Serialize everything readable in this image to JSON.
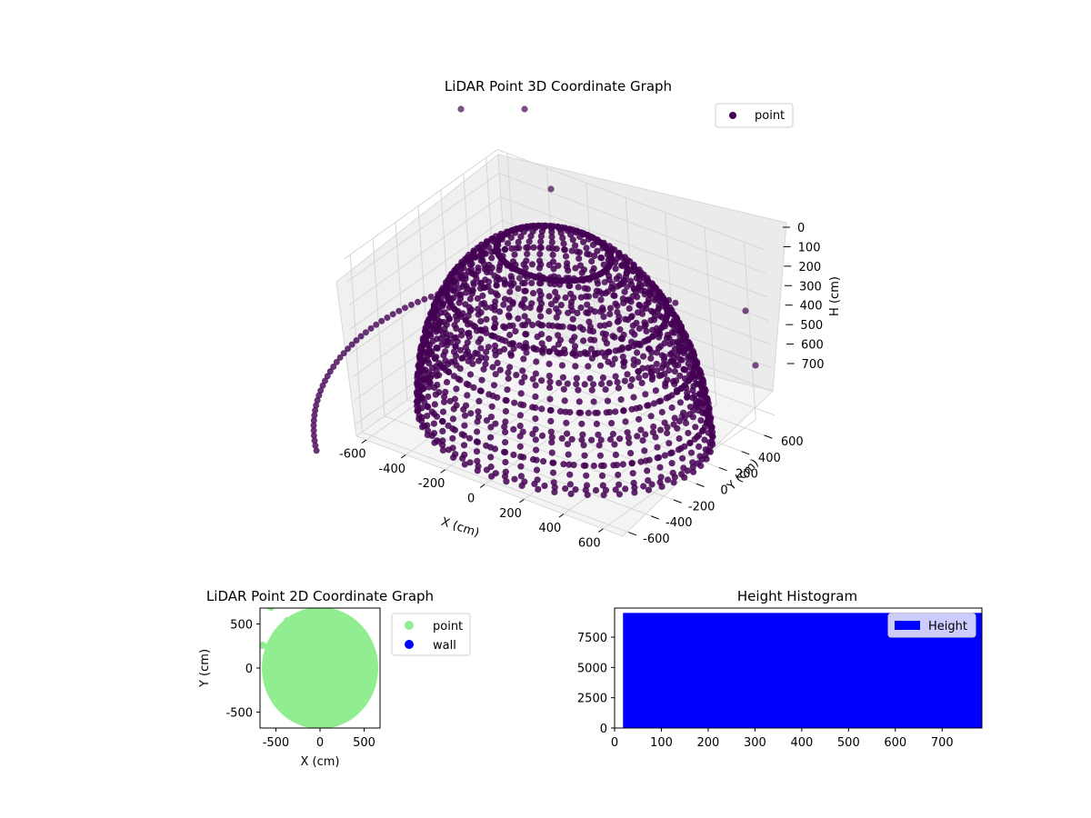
{
  "chart_data": [
    {
      "type": "scatter3d",
      "title": "LiDAR Point 3D Coordinate Graph",
      "xlabel": "X (cm)",
      "ylabel": "Y (cm)",
      "zlabel": "H (cm)",
      "xticks": [
        "-600",
        "-400",
        "-200",
        "0",
        "200",
        "400",
        "600"
      ],
      "yticks": [
        "-600",
        "-400",
        "-200",
        "0",
        "200",
        "400",
        "600"
      ],
      "zticks": [
        "0",
        "100",
        "200",
        "300",
        "400",
        "500",
        "600",
        "700"
      ],
      "xlim": [
        -650,
        700
      ],
      "ylim": [
        -650,
        700
      ],
      "zlim": [
        0,
        750
      ],
      "z_inverted": true,
      "grid": true,
      "legend": {
        "position": "top-right",
        "entries": [
          {
            "label": "point",
            "color": "#440154"
          }
        ]
      },
      "series": [
        {
          "name": "point",
          "color": "#440154",
          "shape": "bowl (ring scan lines)",
          "radius_cm": 650,
          "h_range": [
            0,
            720
          ],
          "rings_h": [
            0,
            200,
            300,
            400,
            500,
            600,
            700
          ]
        }
      ]
    },
    {
      "type": "scatter",
      "title": "LiDAR Point 2D Coordinate Graph",
      "xlabel": "X (cm)",
      "ylabel": "Y (cm)",
      "xticks": [
        "-500",
        "0",
        "500"
      ],
      "yticks": [
        "-500",
        "0",
        "500"
      ],
      "xlim": [
        -680,
        680
      ],
      "ylim": [
        -680,
        680
      ],
      "legend": {
        "position": "right-outside",
        "entries": [
          {
            "label": "point",
            "color": "#90ee90"
          },
          {
            "label": "wall",
            "color": "#0000ff"
          }
        ]
      },
      "series": [
        {
          "name": "point",
          "color": "#90ee90",
          "shape": "filled disc",
          "center": [
            0,
            0
          ],
          "radius": 650
        },
        {
          "name": "wall",
          "color": "#0000ff",
          "values": []
        }
      ]
    },
    {
      "type": "bar",
      "title": "Height Histogram",
      "xticks": [
        "0",
        "100",
        "200",
        "300",
        "400",
        "500",
        "600",
        "700"
      ],
      "yticks": [
        "0",
        "2500",
        "5000",
        "7500"
      ],
      "xlim": [
        0,
        785
      ],
      "ylim": [
        0,
        9900
      ],
      "legend": {
        "position": "top-right",
        "entries": [
          {
            "label": "Height",
            "color": "#0000ff"
          }
        ]
      },
      "series": [
        {
          "name": "Height",
          "color": "#0000ff",
          "bin_range": [
            18,
            785
          ],
          "count": 9500
        }
      ]
    }
  ]
}
